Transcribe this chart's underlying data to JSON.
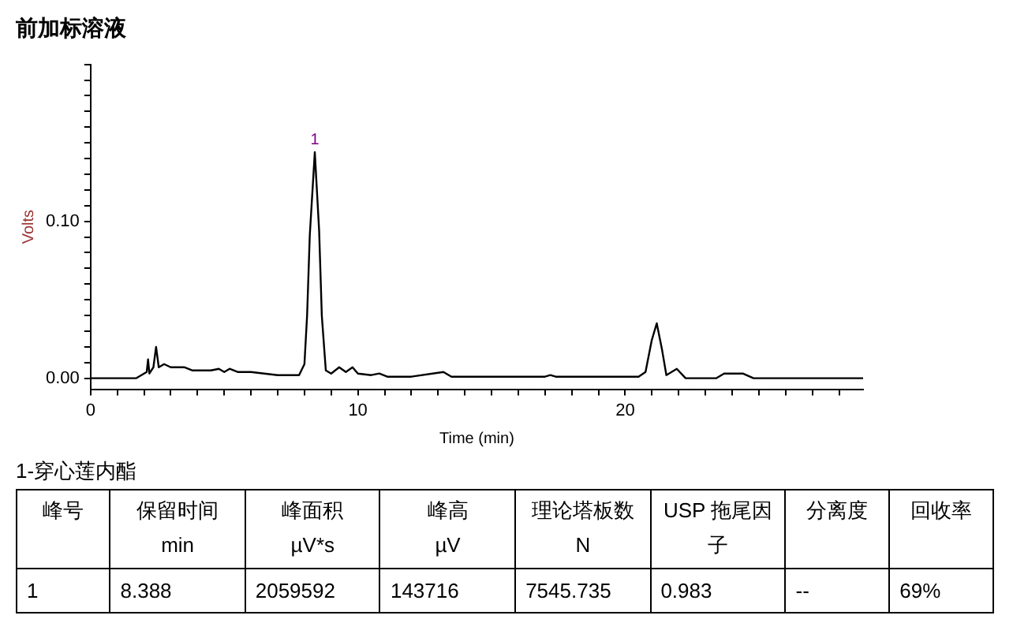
{
  "chart_data": [
    {
      "type": "line",
      "title": "前加标溶液",
      "xlabel": "Time (min)",
      "ylabel": "Volts",
      "x": [
        0,
        1.7,
        2.1,
        2.15,
        2.2,
        2.35,
        2.45,
        2.55,
        2.75,
        3.0,
        3.5,
        3.8,
        4.5,
        4.8,
        5.0,
        5.2,
        5.5,
        6.0,
        6.5,
        7.0,
        7.8,
        8.0,
        8.1,
        8.2,
        8.388,
        8.55,
        8.65,
        8.8,
        9.0,
        9.3,
        9.55,
        9.8,
        10.0,
        10.5,
        10.8,
        11.1,
        12.0,
        13.2,
        13.5,
        15.0,
        17.0,
        17.2,
        17.4,
        18.1,
        18.8,
        20.5,
        20.76,
        20.99,
        21.18,
        21.38,
        21.54,
        21.93,
        22.26,
        23.4,
        23.7,
        24.1,
        24.4,
        24.8,
        28.9
      ],
      "series": [
        {
          "color": "#000000",
          "values": [
            0,
            0,
            0.004,
            0.012,
            0.003,
            0.007,
            0.02,
            0.007,
            0.009,
            0.007,
            0.007,
            0.005,
            0.005,
            0.006,
            0.004,
            0.006,
            0.004,
            0.004,
            0.003,
            0.002,
            0.002,
            0.009,
            0.04,
            0.091,
            0.144,
            0.094,
            0.04,
            0.005,
            0.003,
            0.007,
            0.004,
            0.007,
            0.003,
            0.002,
            0.003,
            0.001,
            0.001,
            0.004,
            0.001,
            0.001,
            0.001,
            0.002,
            0.001,
            0.001,
            0.001,
            0.001,
            0.004,
            0.024,
            0.035,
            0.018,
            0.002,
            0.006,
            0,
            0,
            0.003,
            0.003,
            0.003,
            0,
            0
          ]
        }
      ],
      "xlim": [
        0,
        28.9
      ],
      "xticks": [
        0,
        {
          "value": 1,
          "label": null
        },
        {
          "value": 2,
          "label": null
        },
        {
          "value": 3,
          "label": null
        },
        {
          "value": 4,
          "label": null
        },
        {
          "value": 5,
          "label": null
        },
        {
          "value": 6,
          "label": null
        },
        {
          "value": 7,
          "label": null
        },
        {
          "value": 8,
          "label": null
        },
        {
          "value": 9,
          "label": null
        },
        10,
        {
          "value": 11,
          "label": null
        },
        {
          "value": 12,
          "label": null
        },
        {
          "value": 13,
          "label": null
        },
        {
          "value": 14,
          "label": null
        },
        {
          "value": 15,
          "label": null
        },
        {
          "value": 16,
          "label": null
        },
        {
          "value": 17,
          "label": null
        },
        {
          "value": 18,
          "label": null
        },
        {
          "value": 19,
          "label": null
        },
        20,
        {
          "value": 21,
          "label": null
        },
        {
          "value": 22,
          "label": null
        },
        {
          "value": 23,
          "label": null
        },
        {
          "value": 24,
          "label": null
        },
        {
          "value": 25,
          "label": null
        },
        {
          "value": 26,
          "label": null
        },
        {
          "value": 27,
          "label": null
        },
        {
          "value": 28,
          "label": null
        }
      ],
      "ylim": [
        -0.007,
        0.2
      ],
      "yticks": [
        {
          "value": 0,
          "label": "0.00"
        },
        {
          "value": 0.01,
          "label": null
        },
        {
          "value": 0.02,
          "label": null
        },
        {
          "value": 0.03,
          "label": null
        },
        {
          "value": 0.04,
          "label": null
        },
        {
          "value": 0.05,
          "label": null
        },
        {
          "value": 0.06,
          "label": null
        },
        {
          "value": 0.07,
          "label": null
        },
        {
          "value": 0.08,
          "label": null
        },
        {
          "value": 0.09,
          "label": null
        },
        {
          "value": 0.1,
          "label": "0.10"
        },
        {
          "value": 0.11,
          "label": null
        },
        {
          "value": 0.12,
          "label": null
        },
        {
          "value": 0.13,
          "label": null
        },
        {
          "value": 0.14,
          "label": null
        },
        {
          "value": 0.15,
          "label": null
        },
        {
          "value": 0.16,
          "label": null
        },
        {
          "value": 0.17,
          "label": null
        },
        {
          "value": 0.18,
          "label": null
        },
        {
          "value": 0.19,
          "label": null
        },
        {
          "value": 0.2,
          "label": null
        }
      ],
      "annotations": [
        {
          "text": "1",
          "x": 8.388,
          "y": 0.144
        }
      ],
      "grid": false,
      "legend": false,
      "marker": "none",
      "line_style": "solid"
    },
    {
      "type": "other",
      "title": "1-穿心莲内酯",
      "annotations": [
        "峰号",
        "保留时间\nmin",
        "峰面积\nµV*s",
        "峰高\nµV",
        "理论塔板数\nN",
        "USP 拖尾因子",
        "分离度",
        "回收率",
        "1",
        "8.388",
        "2059592",
        "143716",
        "7545.735",
        "0.983",
        "--",
        "69%"
      ]
    }
  ]
}
